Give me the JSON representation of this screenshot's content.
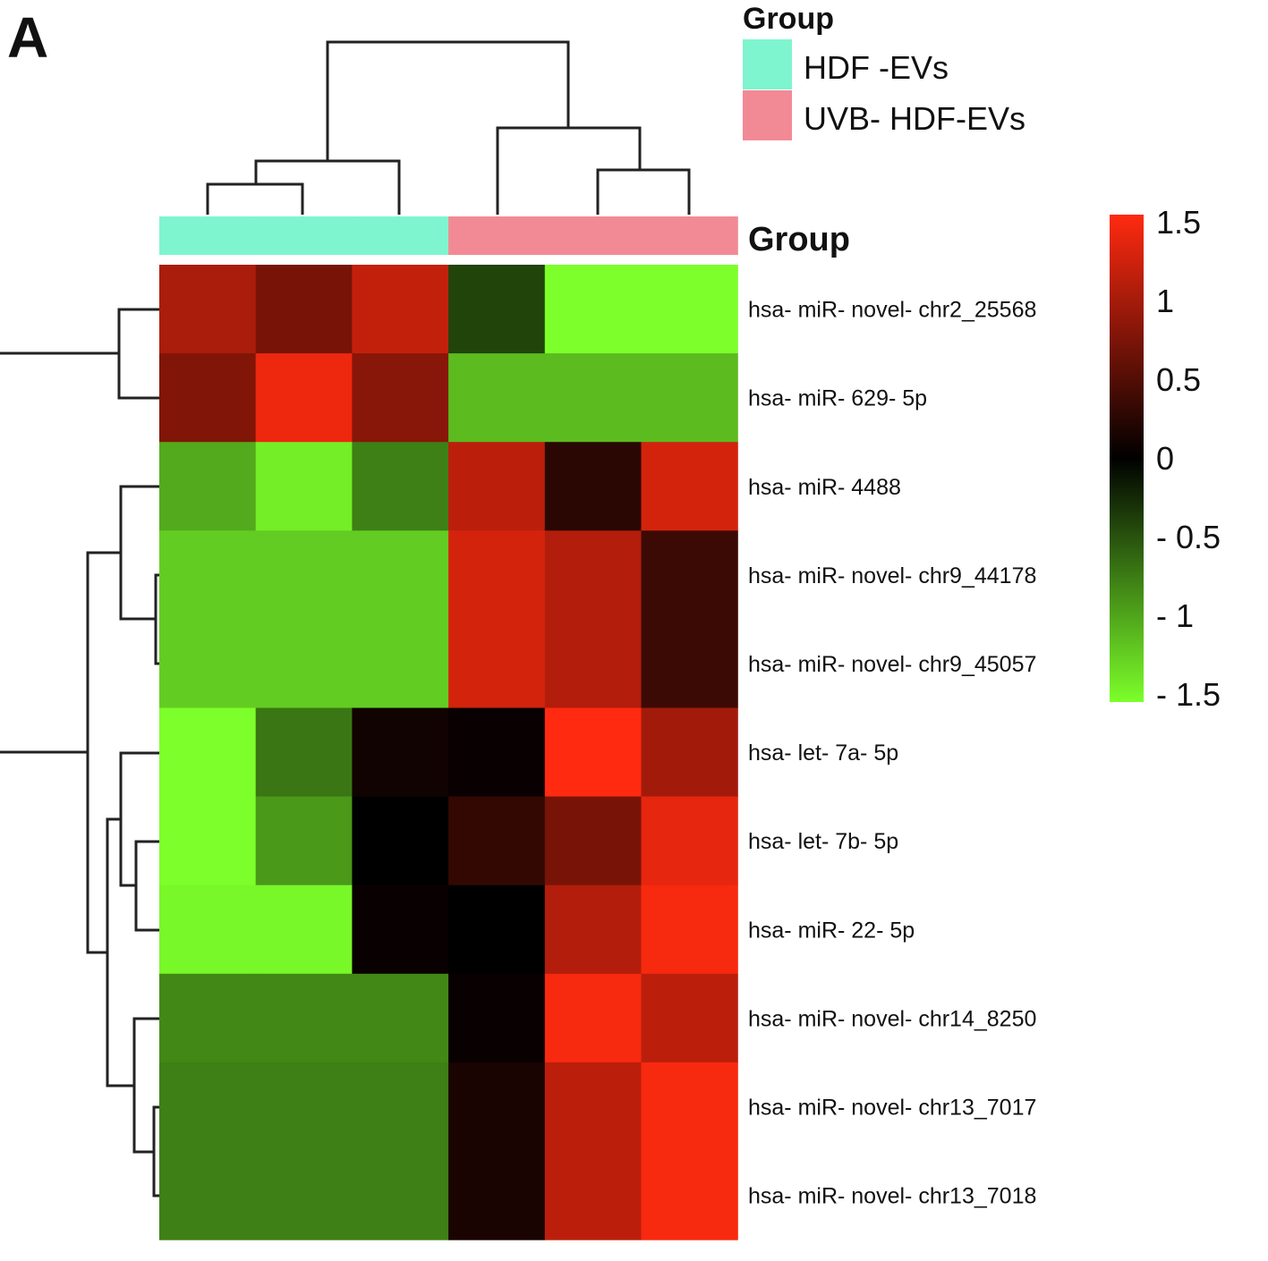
{
  "panel_label": "A",
  "legend": {
    "title": "Group",
    "items": [
      {
        "label": "HDF -EVs",
        "color": "#7ff5cf"
      },
      {
        "label": "UVB- HDF-EVs",
        "color": "#f28a95"
      }
    ]
  },
  "chart_data": {
    "type": "heatmap",
    "title": "",
    "group_bar_label": "Group",
    "columns": [
      {
        "group": "HDF-EVs"
      },
      {
        "group": "HDF-EVs"
      },
      {
        "group": "HDF-EVs"
      },
      {
        "group": "UVB-HDF-EVs"
      },
      {
        "group": "UVB-HDF-EVs"
      },
      {
        "group": "UVB-HDF-EVs"
      }
    ],
    "rows": [
      "hsa- miR- novel- chr2_25568",
      "hsa- miR- 629- 5p",
      "hsa- miR- 4488",
      "hsa- miR- novel- chr9_44178",
      "hsa- miR- novel- chr9_45057",
      "hsa- let- 7a- 5p",
      "hsa- let- 7b- 5p",
      "hsa- miR- 22- 5p",
      "hsa- miR- novel- chr14_8250",
      "hsa- miR- novel- chr13_7017",
      "hsa- miR- novel- chr13_7018"
    ],
    "values": [
      [
        1.0,
        0.7,
        1.15,
        -0.4,
        -1.5,
        -1.5
      ],
      [
        0.75,
        1.4,
        0.8,
        -1.1,
        -1.1,
        -1.1
      ],
      [
        -1.0,
        -1.4,
        -0.75,
        1.1,
        0.25,
        1.25
      ],
      [
        -1.2,
        -1.2,
        -1.2,
        1.25,
        1.05,
        0.35
      ],
      [
        -1.2,
        -1.2,
        -1.2,
        1.25,
        1.05,
        0.35
      ],
      [
        -1.5,
        -0.7,
        0.1,
        0.05,
        1.5,
        0.95
      ],
      [
        -1.5,
        -0.9,
        0.0,
        0.3,
        0.7,
        1.35
      ],
      [
        -1.45,
        -1.45,
        0.05,
        0.0,
        1.05,
        1.45
      ],
      [
        -0.8,
        -0.8,
        -0.8,
        0.05,
        1.45,
        1.1
      ],
      [
        -0.75,
        -0.75,
        -0.75,
        0.15,
        1.1,
        1.45
      ],
      [
        -0.75,
        -0.75,
        -0.75,
        0.15,
        1.1,
        1.45
      ]
    ],
    "colorbar": {
      "range": [
        -1.5,
        1.5
      ],
      "colors": [
        "#7cff2a",
        "#000000",
        "#ff2a10"
      ],
      "ticks": [
        1.5,
        1,
        0.5,
        0,
        -0.5,
        -1,
        -1.5
      ],
      "tick_labels": [
        "1.5",
        "1",
        "0.5",
        "0",
        "- 0.5",
        "- 1",
        "- 1.5"
      ]
    },
    "group_colors": {
      "HDF-EVs": "#7ff5cf",
      "UVB-HDF-EVs": "#f28a95"
    }
  }
}
